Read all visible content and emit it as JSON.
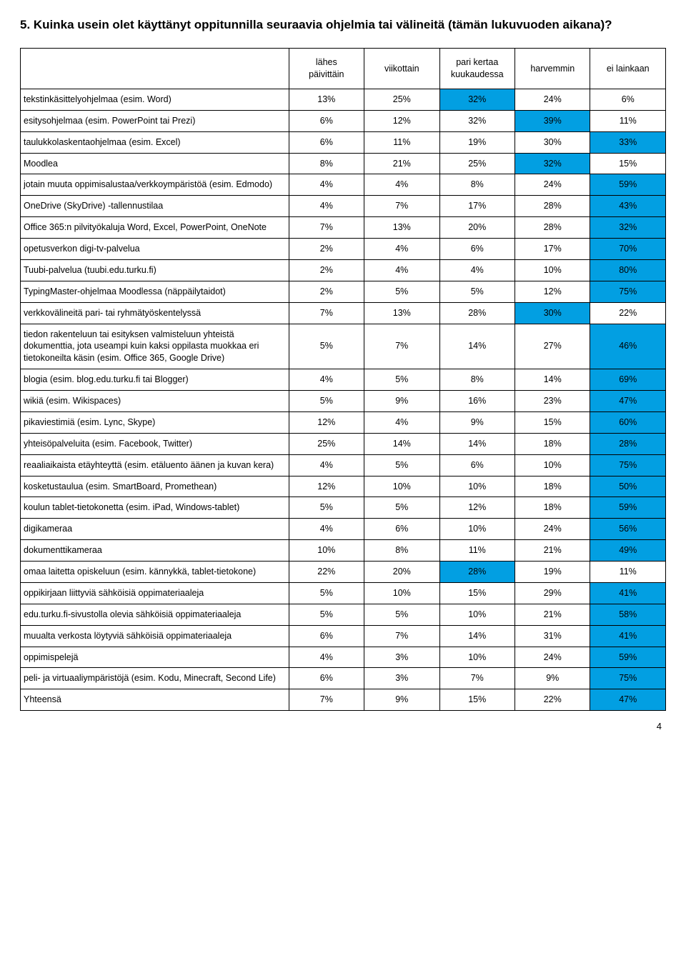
{
  "title": "5. Kuinka usein olet käyttänyt oppitunnilla seuraavia ohjelmia tai välineitä (tämän lukuvuoden aikana)?",
  "page_number": "4",
  "highlight_color": "#029fe2",
  "columns": [
    "lähes päivittäin",
    "viikottain",
    "pari kertaa kuukaudessa",
    "harvemmin",
    "ei lainkaan"
  ],
  "column_header_lines": [
    [
      "lähes",
      "päivittäin"
    ],
    [
      "viikottain"
    ],
    [
      "pari kertaa",
      "kuukaudessa"
    ],
    [
      "harvemmin"
    ],
    [
      "ei lainkaan"
    ]
  ],
  "rows": [
    {
      "label": "tekstinkäsittelyohjelmaa (esim. Word)",
      "cells": [
        {
          "v": "13%",
          "hl": false
        },
        {
          "v": "25%",
          "hl": false
        },
        {
          "v": "32%",
          "hl": true
        },
        {
          "v": "24%",
          "hl": false
        },
        {
          "v": "6%",
          "hl": false
        }
      ]
    },
    {
      "label": "esitysohjelmaa (esim. PowerPoint tai Prezi)",
      "cells": [
        {
          "v": "6%",
          "hl": false
        },
        {
          "v": "12%",
          "hl": false
        },
        {
          "v": "32%",
          "hl": false
        },
        {
          "v": "39%",
          "hl": true
        },
        {
          "v": "11%",
          "hl": false
        }
      ]
    },
    {
      "label": "taulukkolaskentaohjelmaa (esim. Excel)",
      "cells": [
        {
          "v": "6%",
          "hl": false
        },
        {
          "v": "11%",
          "hl": false
        },
        {
          "v": "19%",
          "hl": false
        },
        {
          "v": "30%",
          "hl": false
        },
        {
          "v": "33%",
          "hl": true
        }
      ]
    },
    {
      "label": "Moodlea",
      "cells": [
        {
          "v": "8%",
          "hl": false
        },
        {
          "v": "21%",
          "hl": false
        },
        {
          "v": "25%",
          "hl": false
        },
        {
          "v": "32%",
          "hl": true
        },
        {
          "v": "15%",
          "hl": false
        }
      ]
    },
    {
      "label": "jotain muuta oppimisalustaa/verkkoympäristöä (esim. Edmodo)",
      "cells": [
        {
          "v": "4%",
          "hl": false
        },
        {
          "v": "4%",
          "hl": false
        },
        {
          "v": "8%",
          "hl": false
        },
        {
          "v": "24%",
          "hl": false
        },
        {
          "v": "59%",
          "hl": true
        }
      ]
    },
    {
      "label": "OneDrive (SkyDrive) -tallennustilaa",
      "cells": [
        {
          "v": "4%",
          "hl": false
        },
        {
          "v": "7%",
          "hl": false
        },
        {
          "v": "17%",
          "hl": false
        },
        {
          "v": "28%",
          "hl": false
        },
        {
          "v": "43%",
          "hl": true
        }
      ]
    },
    {
      "label": "Office 365:n pilvityökaluja Word, Excel, PowerPoint, OneNote",
      "cells": [
        {
          "v": "7%",
          "hl": false
        },
        {
          "v": "13%",
          "hl": false
        },
        {
          "v": "20%",
          "hl": false
        },
        {
          "v": "28%",
          "hl": false
        },
        {
          "v": "32%",
          "hl": true
        }
      ]
    },
    {
      "label": "opetusverkon digi-tv-palvelua",
      "cells": [
        {
          "v": "2%",
          "hl": false
        },
        {
          "v": "4%",
          "hl": false
        },
        {
          "v": "6%",
          "hl": false
        },
        {
          "v": "17%",
          "hl": false
        },
        {
          "v": "70%",
          "hl": true
        }
      ]
    },
    {
      "label": "Tuubi-palvelua (tuubi.edu.turku.fi)",
      "cells": [
        {
          "v": "2%",
          "hl": false
        },
        {
          "v": "4%",
          "hl": false
        },
        {
          "v": "4%",
          "hl": false
        },
        {
          "v": "10%",
          "hl": false
        },
        {
          "v": "80%",
          "hl": true
        }
      ]
    },
    {
      "label": "TypingMaster-ohjelmaa Moodlessa (näppäilytaidot)",
      "cells": [
        {
          "v": "2%",
          "hl": false
        },
        {
          "v": "5%",
          "hl": false
        },
        {
          "v": "5%",
          "hl": false
        },
        {
          "v": "12%",
          "hl": false
        },
        {
          "v": "75%",
          "hl": true
        }
      ]
    },
    {
      "label": "verkkovälineitä pari- tai ryhmätyöskentelyssä",
      "cells": [
        {
          "v": "7%",
          "hl": false
        },
        {
          "v": "13%",
          "hl": false
        },
        {
          "v": "28%",
          "hl": false
        },
        {
          "v": "30%",
          "hl": true
        },
        {
          "v": "22%",
          "hl": false
        }
      ]
    },
    {
      "label": "tiedon rakenteluun tai esityksen valmisteluun yhteistä dokumenttia, jota useampi kuin kaksi oppilasta muokkaa eri tietokoneilta käsin (esim. Office 365, Google Drive)",
      "cells": [
        {
          "v": "5%",
          "hl": false
        },
        {
          "v": "7%",
          "hl": false
        },
        {
          "v": "14%",
          "hl": false
        },
        {
          "v": "27%",
          "hl": false
        },
        {
          "v": "46%",
          "hl": true
        }
      ]
    },
    {
      "label": "blogia (esim. blog.edu.turku.fi tai Blogger)",
      "cells": [
        {
          "v": "4%",
          "hl": false
        },
        {
          "v": "5%",
          "hl": false
        },
        {
          "v": "8%",
          "hl": false
        },
        {
          "v": "14%",
          "hl": false
        },
        {
          "v": "69%",
          "hl": true
        }
      ]
    },
    {
      "label": "wikiä (esim. Wikispaces)",
      "cells": [
        {
          "v": "5%",
          "hl": false
        },
        {
          "v": "9%",
          "hl": false
        },
        {
          "v": "16%",
          "hl": false
        },
        {
          "v": "23%",
          "hl": false
        },
        {
          "v": "47%",
          "hl": true
        }
      ]
    },
    {
      "label": "pikaviestimiä (esim. Lync, Skype)",
      "cells": [
        {
          "v": "12%",
          "hl": false
        },
        {
          "v": "4%",
          "hl": false
        },
        {
          "v": "9%",
          "hl": false
        },
        {
          "v": "15%",
          "hl": false
        },
        {
          "v": "60%",
          "hl": true
        }
      ]
    },
    {
      "label": "yhteisöpalveluita (esim. Facebook, Twitter)",
      "cells": [
        {
          "v": "25%",
          "hl": false
        },
        {
          "v": "14%",
          "hl": false
        },
        {
          "v": "14%",
          "hl": false
        },
        {
          "v": "18%",
          "hl": false
        },
        {
          "v": "28%",
          "hl": true
        }
      ]
    },
    {
      "label": "reaaliaikaista etäyhteyttä (esim. etäluento äänen ja kuvan kera)",
      "cells": [
        {
          "v": "4%",
          "hl": false
        },
        {
          "v": "5%",
          "hl": false
        },
        {
          "v": "6%",
          "hl": false
        },
        {
          "v": "10%",
          "hl": false
        },
        {
          "v": "75%",
          "hl": true
        }
      ]
    },
    {
      "label": "kosketustaulua (esim. SmartBoard, Promethean)",
      "cells": [
        {
          "v": "12%",
          "hl": false
        },
        {
          "v": "10%",
          "hl": false
        },
        {
          "v": "10%",
          "hl": false
        },
        {
          "v": "18%",
          "hl": false
        },
        {
          "v": "50%",
          "hl": true
        }
      ]
    },
    {
      "label": "koulun tablet-tietokonetta (esim. iPad, Windows-tablet)",
      "cells": [
        {
          "v": "5%",
          "hl": false
        },
        {
          "v": "5%",
          "hl": false
        },
        {
          "v": "12%",
          "hl": false
        },
        {
          "v": "18%",
          "hl": false
        },
        {
          "v": "59%",
          "hl": true
        }
      ]
    },
    {
      "label": "digikameraa",
      "cells": [
        {
          "v": "4%",
          "hl": false
        },
        {
          "v": "6%",
          "hl": false
        },
        {
          "v": "10%",
          "hl": false
        },
        {
          "v": "24%",
          "hl": false
        },
        {
          "v": "56%",
          "hl": true
        }
      ]
    },
    {
      "label": "dokumenttikameraa",
      "cells": [
        {
          "v": "10%",
          "hl": false
        },
        {
          "v": "8%",
          "hl": false
        },
        {
          "v": "11%",
          "hl": false
        },
        {
          "v": "21%",
          "hl": false
        },
        {
          "v": "49%",
          "hl": true
        }
      ]
    },
    {
      "label": "omaa laitetta opiskeluun (esim. kännykkä, tablet-tietokone)",
      "cells": [
        {
          "v": "22%",
          "hl": false
        },
        {
          "v": "20%",
          "hl": false
        },
        {
          "v": "28%",
          "hl": true
        },
        {
          "v": "19%",
          "hl": false
        },
        {
          "v": "11%",
          "hl": false
        }
      ]
    },
    {
      "label": "oppikirjaan liittyviä sähköisiä oppimateriaaleja",
      "cells": [
        {
          "v": "5%",
          "hl": false
        },
        {
          "v": "10%",
          "hl": false
        },
        {
          "v": "15%",
          "hl": false
        },
        {
          "v": "29%",
          "hl": false
        },
        {
          "v": "41%",
          "hl": true
        }
      ]
    },
    {
      "label": "edu.turku.fi-sivustolla olevia sähköisiä oppimateriaaleja",
      "cells": [
        {
          "v": "5%",
          "hl": false
        },
        {
          "v": "5%",
          "hl": false
        },
        {
          "v": "10%",
          "hl": false
        },
        {
          "v": "21%",
          "hl": false
        },
        {
          "v": "58%",
          "hl": true
        }
      ]
    },
    {
      "label": "muualta verkosta löytyviä sähköisiä oppimateriaaleja",
      "cells": [
        {
          "v": "6%",
          "hl": false
        },
        {
          "v": "7%",
          "hl": false
        },
        {
          "v": "14%",
          "hl": false
        },
        {
          "v": "31%",
          "hl": false
        },
        {
          "v": "41%",
          "hl": true
        }
      ]
    },
    {
      "label": "oppimispelejä",
      "cells": [
        {
          "v": "4%",
          "hl": false
        },
        {
          "v": "3%",
          "hl": false
        },
        {
          "v": "10%",
          "hl": false
        },
        {
          "v": "24%",
          "hl": false
        },
        {
          "v": "59%",
          "hl": true
        }
      ]
    },
    {
      "label": "peli- ja virtuaaliympäristöjä (esim. Kodu, Minecraft, Second Life)",
      "cells": [
        {
          "v": "6%",
          "hl": false
        },
        {
          "v": "3%",
          "hl": false
        },
        {
          "v": "7%",
          "hl": false
        },
        {
          "v": "9%",
          "hl": false
        },
        {
          "v": "75%",
          "hl": true
        }
      ]
    },
    {
      "label": "Yhteensä",
      "cells": [
        {
          "v": "7%",
          "hl": false
        },
        {
          "v": "9%",
          "hl": false
        },
        {
          "v": "15%",
          "hl": false
        },
        {
          "v": "22%",
          "hl": false
        },
        {
          "v": "47%",
          "hl": true
        }
      ]
    }
  ]
}
